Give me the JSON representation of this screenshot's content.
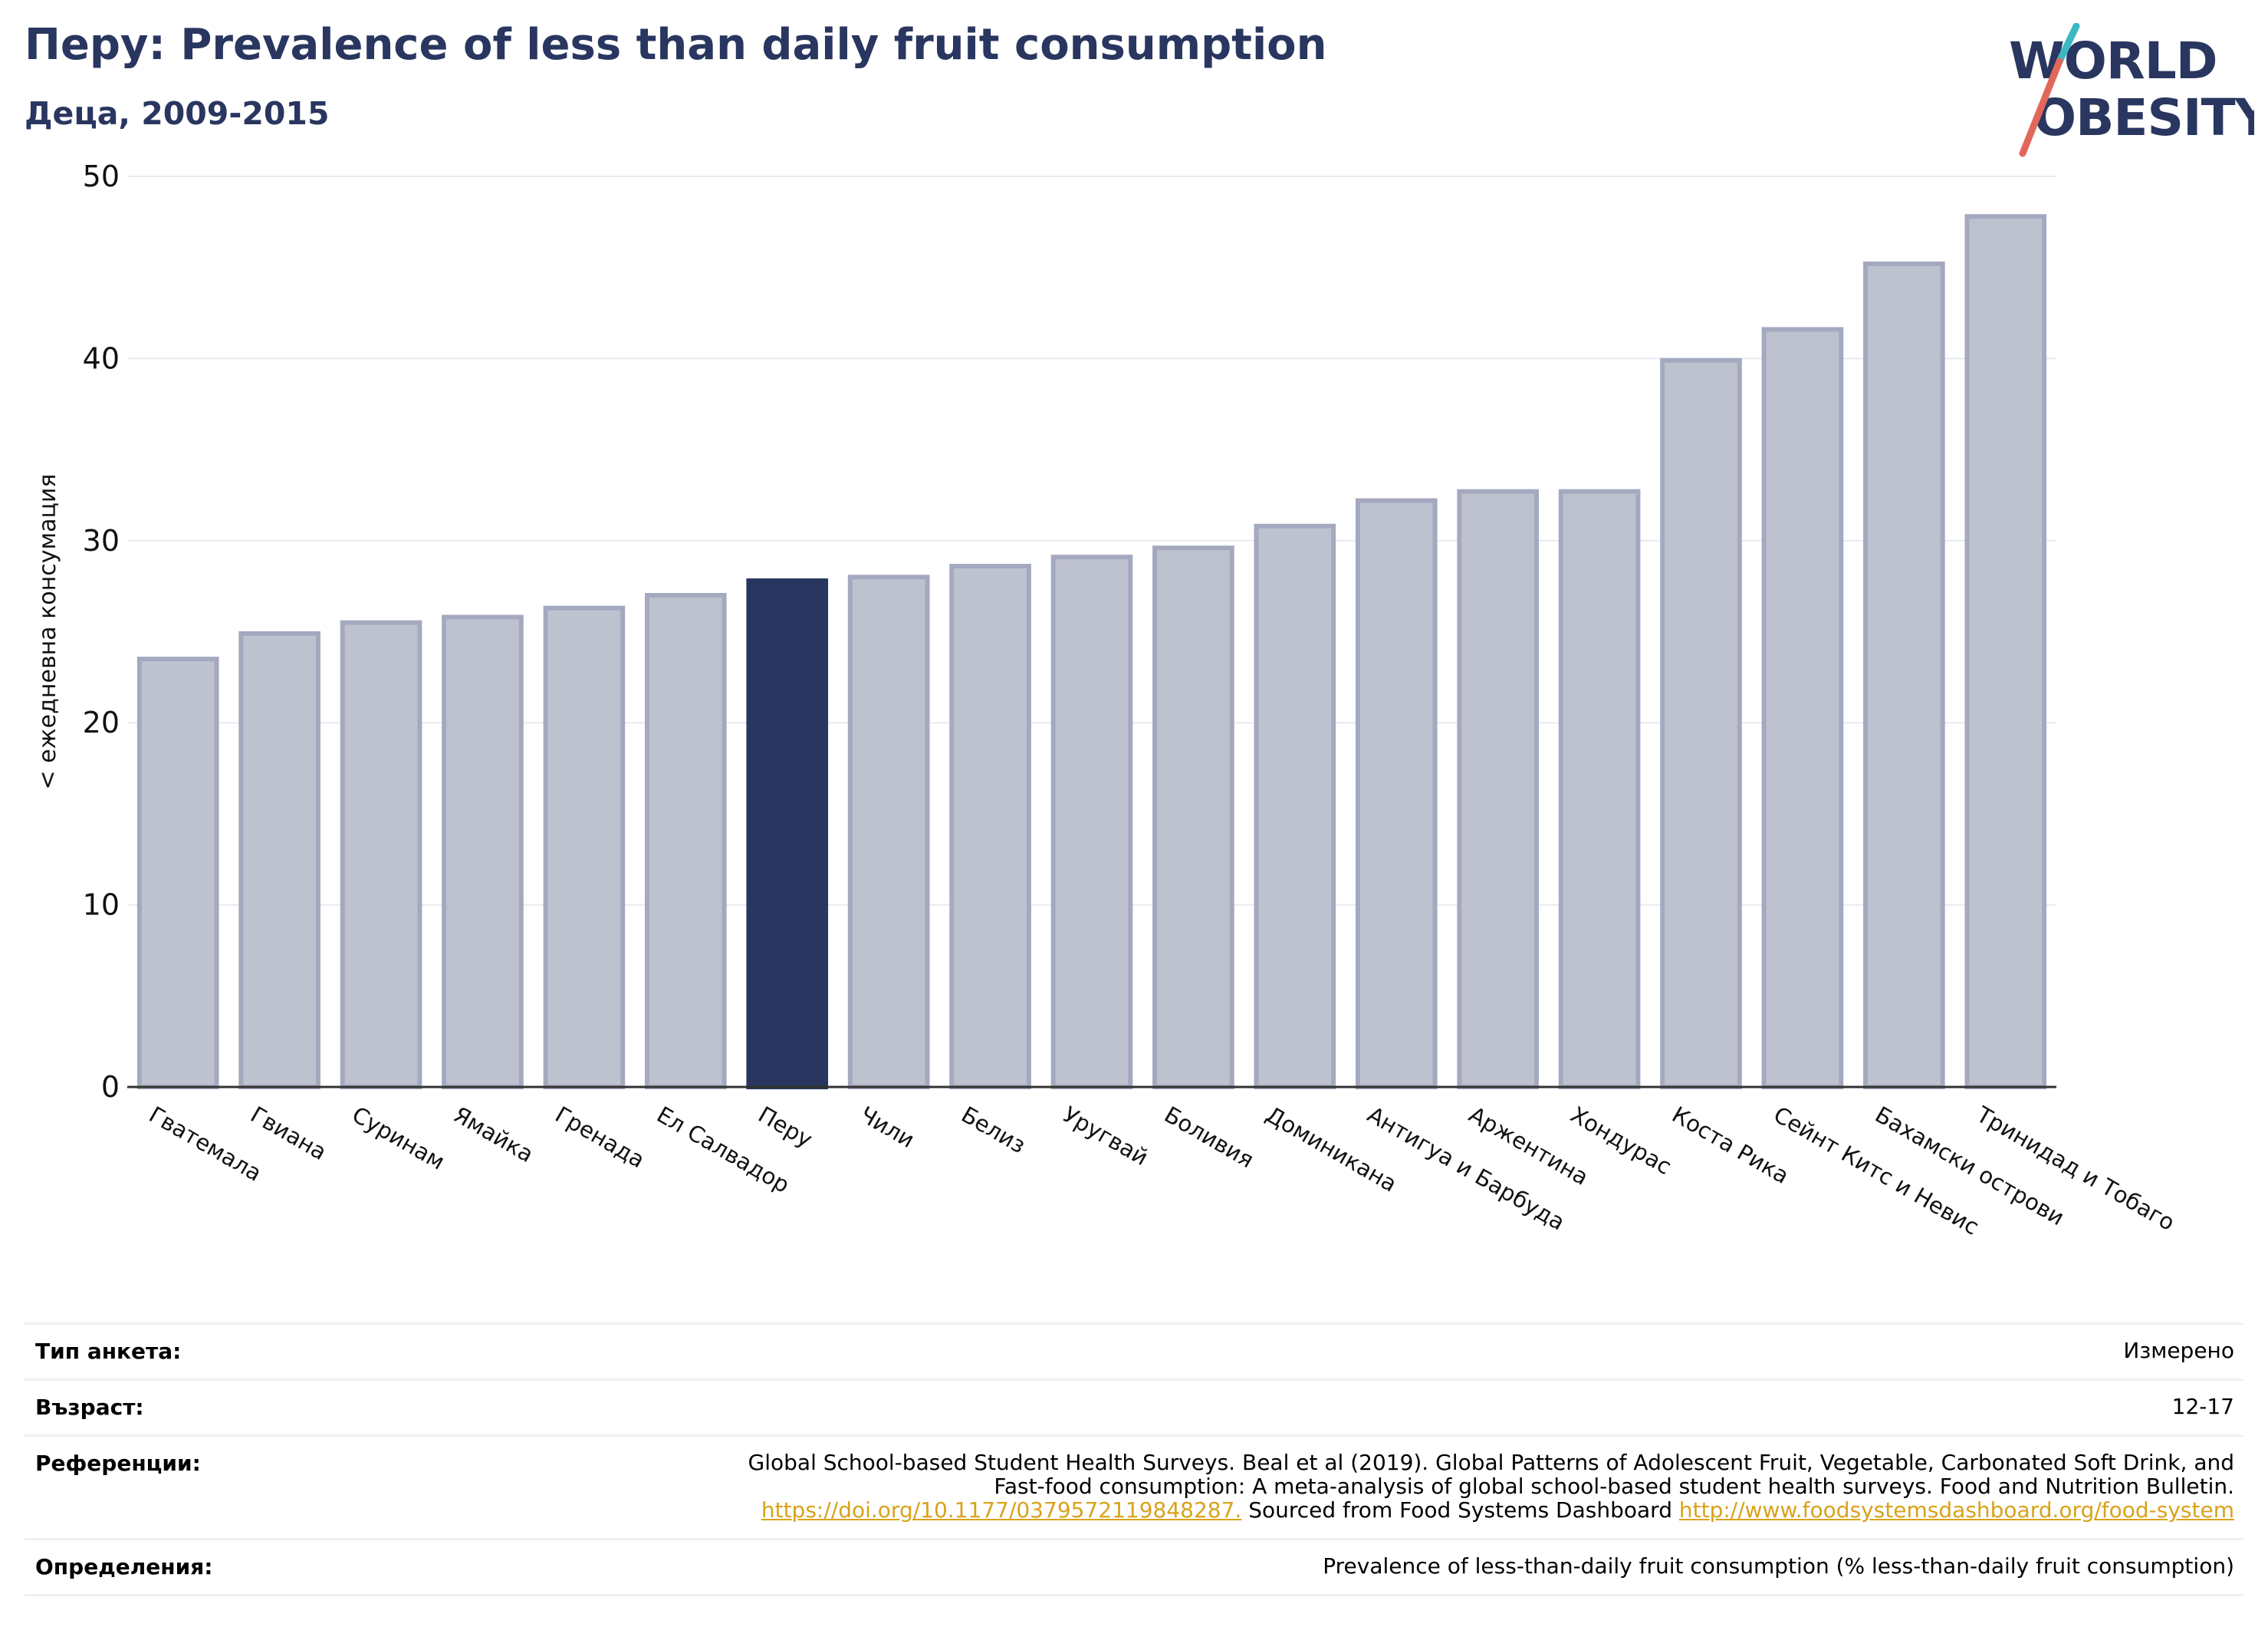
{
  "header": {
    "title": "Перу: Prevalence of less than daily fruit consumption",
    "subtitle": "Деца, 2009-2015"
  },
  "logo": {
    "line1": "WORLD",
    "line2": "OBESITY"
  },
  "colors": {
    "highlight": "#29365f",
    "bar": "#bec2cf",
    "bar_edge": "#a4a9bf",
    "title": "#29365f",
    "link": "#d9a21b"
  },
  "chart_data": {
    "type": "bar",
    "title": "",
    "xlabel": "",
    "ylabel": "< ежедневна консумация",
    "ylim": [
      0,
      50
    ],
    "yticks": [
      0,
      10,
      20,
      30,
      40,
      50
    ],
    "grid": true,
    "highlight": "Перу",
    "categories": [
      "Гватемала",
      "Гвиана",
      "Суринам",
      "Ямайка",
      "Гренада",
      "Ел Салвадор",
      "Перу",
      "Чили",
      "Белиз",
      "Уругвай",
      "Боливия",
      "Доминикана",
      "Антигуа и Барбуда",
      "Аржентина",
      "Хондурас",
      "Коста Рика",
      "Сейнт Китс и Невис",
      "Бахамски острови",
      "Тринидад и Тобаго"
    ],
    "values": [
      23.5,
      24.9,
      25.5,
      25.8,
      26.3,
      27.0,
      27.8,
      28.0,
      28.6,
      29.1,
      29.6,
      30.8,
      32.2,
      32.7,
      32.7,
      39.9,
      41.6,
      45.2,
      47.8
    ]
  },
  "meta": {
    "survey_type_label": "Тип анкета:",
    "survey_type_value": "Измерено",
    "age_label": "Възраст:",
    "age_value": "12-17",
    "references_label": "Референции:",
    "references_line1": "Global School-based Student Health Surveys. Beal et al (2019). Global Patterns of Adolescent Fruit, Vegetable, Carbonated Soft Drink, and",
    "references_line2": "Fast-food consumption: A meta-analysis of global school-based student health surveys. Food and Nutrition Bulletin.",
    "references_link1": "https://doi.org/10.1177/0379572119848287.",
    "references_mid": " Sourced from Food Systems Dashboard ",
    "references_link2": "http://www.foodsystemsdashboard.org/food-system",
    "definitions_label": "Определения:",
    "definitions_value": "Prevalence of less-than-daily fruit consumption (% less-than-daily fruit consumption)"
  }
}
